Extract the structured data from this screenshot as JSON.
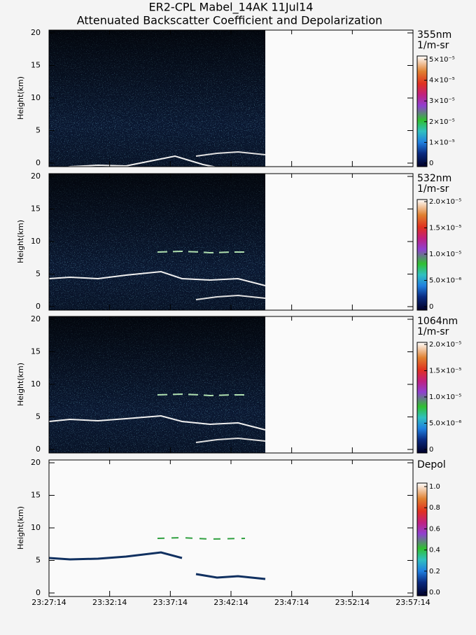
{
  "title": "ER2-CPL Mabel_14AK 11Jul14",
  "subtitle": "Attenuated Backscatter Coefficient and Depolarization",
  "chart_data": [
    {
      "type": "heatmap",
      "ylabel": "Height(km)",
      "ylim": [
        -0.54,
        20.43
      ],
      "yticks": [
        0,
        5,
        10,
        15,
        20
      ],
      "colorbar_label": [
        "355nm",
        "1/m-sr"
      ],
      "clim": [
        -1.7e-06,
        5.17e-05
      ],
      "cticks": [
        0,
        {
          "value": 1e-05,
          "label": "1×10⁻⁵"
        },
        {
          "value": 2e-05,
          "label": "2×10⁻⁵"
        },
        {
          "value": 3e-05,
          "label": "3×10⁻⁵"
        },
        {
          "value": 4e-05,
          "label": "4×10⁻⁵"
        },
        {
          "value": 5e-05,
          "label": "5×10⁻⁵"
        }
      ]
    },
    {
      "type": "heatmap",
      "ylabel": "Height(km)",
      "ylim": [
        -0.54,
        20.43
      ],
      "yticks": [
        0,
        5,
        10,
        15,
        20
      ],
      "colorbar_label": [
        "532nm",
        "1/m-sr"
      ],
      "clim": [
        -6.7e-07,
        2.04e-05
      ],
      "cticks": [
        0,
        {
          "value": 5e-06,
          "label": "5.0×10⁻⁶"
        },
        {
          "value": 1e-05,
          "label": "1.0×10⁻⁵"
        },
        {
          "value": 1.5e-05,
          "label": "1.5×10⁻⁵"
        },
        {
          "value": 2e-05,
          "label": "2.0×10⁻⁵"
        }
      ]
    },
    {
      "type": "heatmap",
      "ylabel": "Height(km)",
      "ylim": [
        -0.54,
        20.43
      ],
      "yticks": [
        0,
        5,
        10,
        15,
        20
      ],
      "colorbar_label": [
        "1064nm",
        "1/m-sr"
      ],
      "clim": [
        -6.7e-07,
        2.04e-05
      ],
      "cticks": [
        0,
        {
          "value": 5e-06,
          "label": "5.0×10⁻⁶"
        },
        {
          "value": 1e-05,
          "label": "1.0×10⁻⁵"
        },
        {
          "value": 1.5e-05,
          "label": "1.5×10⁻⁵"
        },
        {
          "value": 2e-05,
          "label": "2.0×10⁻⁵"
        }
      ]
    },
    {
      "type": "heatmap",
      "ylabel": "Height(km)",
      "ylim": [
        -0.54,
        20.43
      ],
      "yticks": [
        0,
        5,
        10,
        15,
        20
      ],
      "colorbar_label": [
        "Depol"
      ],
      "clim": [
        -0.033,
        1.033
      ],
      "cticks": [
        {
          "value": 0,
          "label": "0.0"
        },
        0.2,
        0.4,
        0.6,
        0.8,
        {
          "value": 1,
          "label": "1.0"
        }
      ],
      "xlim": [
        84434,
        86234
      ],
      "xticks": [
        {
          "value": 84434,
          "label": "23:27:14"
        },
        {
          "value": 84734,
          "label": "23:32:14"
        },
        {
          "value": 85034,
          "label": "23:37:14"
        },
        {
          "value": 85334,
          "label": "23:42:14"
        },
        {
          "value": 85634,
          "label": "23:47:14"
        },
        {
          "value": 85934,
          "label": "23:52:14"
        },
        {
          "value": 86234,
          "label": "23:57:14"
        }
      ]
    }
  ]
}
